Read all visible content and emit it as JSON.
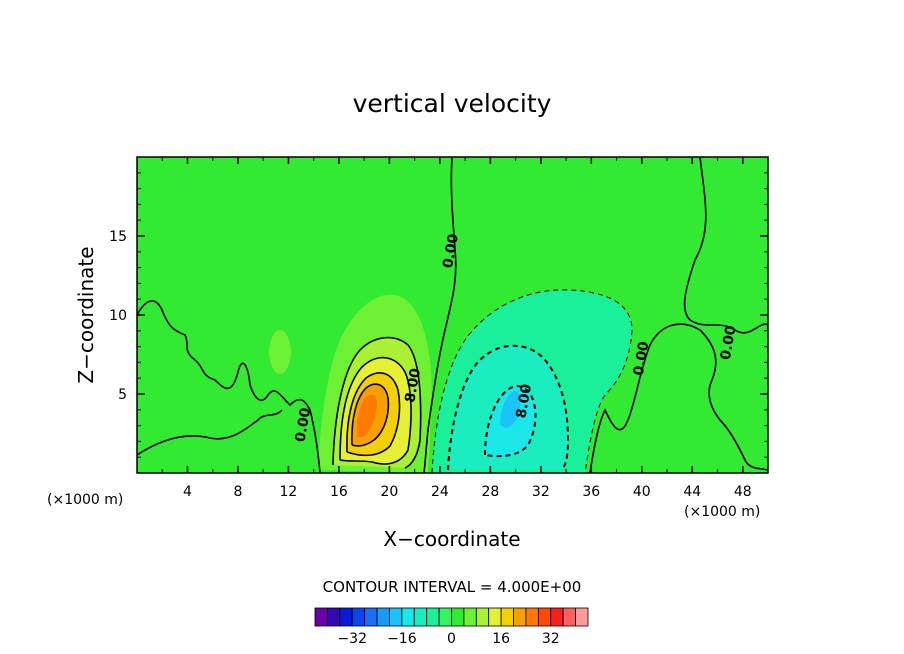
{
  "chart_data": {
    "type": "contour",
    "title": "vertical velocity",
    "xlabel": "X−coordinate",
    "ylabel": "Z−coordinate",
    "x_unit": "(×1000 m)",
    "x_unit_right": "(×1000 m)",
    "xlim": [
      0,
      50
    ],
    "ylim": [
      0,
      20
    ],
    "x_ticks": [
      4,
      8,
      12,
      16,
      20,
      24,
      28,
      32,
      36,
      40,
      44,
      48
    ],
    "y_ticks": [
      5,
      10,
      15
    ],
    "contour_interval_text": "CONTOUR INTERVAL = 4.000E+00",
    "contour_labels": [
      {
        "text": "0.00",
        "x": 13.5,
        "y": 3
      },
      {
        "text": "8.00",
        "x": 22.2,
        "y": 5.5
      },
      {
        "text": "0.00",
        "x": 25.2,
        "y": 14.0
      },
      {
        "text": "8.00",
        "x": 31.0,
        "y": 4.5
      },
      {
        "text": "0.00",
        "x": 40.3,
        "y": 7.2
      },
      {
        "text": "0.00",
        "x": 47.2,
        "y": 8.2
      }
    ],
    "colorbar": {
      "levels": [
        -40,
        -36,
        -32,
        -28,
        -24,
        -20,
        -16,
        -12,
        -8,
        -4,
        0,
        4,
        8,
        12,
        16,
        20,
        24,
        28,
        32,
        36,
        40
      ],
      "colors": [
        "#6a00a8",
        "#2e0ab5",
        "#0a1ad6",
        "#0a45ee",
        "#1a6ff5",
        "#1a9af7",
        "#1ac4f7",
        "#1ae8e8",
        "#1aeec0",
        "#1af098",
        "#33f560",
        "#33ea33",
        "#6ef033",
        "#aaf033",
        "#e6f033",
        "#f5d000",
        "#f5a000",
        "#ff7a00",
        "#ff4a00",
        "#f52020",
        "#ff6060",
        "#ff9a9a"
      ],
      "tick_labels": [
        "−32",
        "−16",
        "0",
        "16",
        "32"
      ],
      "tick_values": [
        -32,
        -16,
        0,
        16,
        32
      ]
    }
  }
}
